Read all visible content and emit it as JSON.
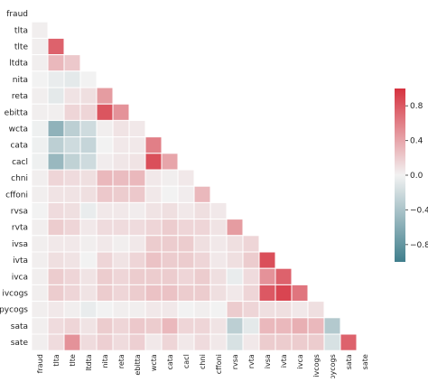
{
  "chart_data": {
    "type": "heatmap",
    "title": "",
    "xlabel": "",
    "ylabel": "",
    "grid": false,
    "legend": "right",
    "row_labels": [
      "fraud",
      "tlta",
      "tlte",
      "ltdta",
      "nita",
      "reta",
      "ebitta",
      "wcta",
      "cata",
      "cacl",
      "chni",
      "cffoni",
      "rvsa",
      "rvta",
      "ivsa",
      "ivta",
      "ivca",
      "ivcogs",
      "pycogs",
      "sata",
      "sate"
    ],
    "col_labels": [
      "fraud",
      "tlta",
      "tlte",
      "ltdta",
      "nita",
      "reta",
      "ebitta",
      "wcta",
      "cata",
      "cacl",
      "chni",
      "cffoni",
      "rvsa",
      "rvta",
      "ivsa",
      "ivta",
      "ivca",
      "ivcogs",
      "pycogs",
      "sata",
      "sate"
    ],
    "mask": "upper-triangle-including-diagonal",
    "values": [
      [],
      [
        0.02
      ],
      [
        0.02,
        0.75
      ],
      [
        0.02,
        0.3,
        0.22
      ],
      [
        0.0,
        -0.05,
        -0.08,
        0.0
      ],
      [
        0.02,
        -0.08,
        0.08,
        0.1,
        0.45
      ],
      [
        0.02,
        0.02,
        0.15,
        0.15,
        0.82,
        0.5
      ],
      [
        -0.02,
        -0.55,
        -0.3,
        -0.2,
        0.02,
        0.08,
        0.05
      ],
      [
        -0.02,
        -0.3,
        -0.2,
        -0.25,
        0.0,
        0.05,
        0.05,
        0.6
      ],
      [
        -0.02,
        -0.5,
        -0.28,
        -0.2,
        0.03,
        0.06,
        0.08,
        0.85,
        0.4
      ],
      [
        0.02,
        0.15,
        0.12,
        0.1,
        0.3,
        0.28,
        0.3,
        0.05,
        0.02,
        0.05
      ],
      [
        0.02,
        0.08,
        0.08,
        0.1,
        0.22,
        0.2,
        0.22,
        0.05,
        0.0,
        0.03,
        0.3
      ],
      [
        0.0,
        0.12,
        0.1,
        -0.05,
        0.05,
        0.05,
        0.03,
        0.08,
        0.1,
        0.05,
        0.1,
        0.05
      ],
      [
        0.02,
        0.2,
        0.15,
        0.05,
        0.12,
        0.12,
        0.12,
        0.15,
        0.2,
        0.15,
        0.15,
        0.08,
        0.45
      ],
      [
        0.02,
        0.05,
        0.05,
        0.02,
        0.05,
        0.02,
        0.05,
        0.2,
        0.2,
        0.2,
        0.1,
        0.05,
        0.1,
        0.15
      ],
      [
        0.02,
        0.1,
        0.08,
        0.0,
        0.15,
        0.08,
        0.15,
        0.25,
        0.2,
        0.2,
        0.15,
        0.05,
        0.1,
        0.2,
        0.85
      ],
      [
        0.02,
        0.2,
        0.15,
        0.08,
        0.2,
        0.15,
        0.2,
        0.2,
        0.2,
        0.15,
        0.2,
        0.1,
        -0.05,
        0.12,
        0.5,
        0.75
      ],
      [
        0.02,
        0.2,
        0.15,
        0.08,
        0.2,
        0.15,
        0.2,
        0.25,
        0.25,
        0.2,
        0.2,
        0.1,
        0.05,
        0.15,
        0.8,
        0.9,
        0.65
      ],
      [
        0.02,
        0.05,
        0.02,
        -0.05,
        0.0,
        0.02,
        0.02,
        0.05,
        0.05,
        0.0,
        0.02,
        0.0,
        0.2,
        0.15,
        0.1,
        0.1,
        0.05,
        0.1
      ],
      [
        0.02,
        0.12,
        0.15,
        0.08,
        0.2,
        0.15,
        0.22,
        0.2,
        0.3,
        0.15,
        0.15,
        0.08,
        -0.3,
        -0.08,
        0.3,
        0.3,
        0.35,
        0.3,
        -0.35
      ],
      [
        0.02,
        0.12,
        0.5,
        0.12,
        0.18,
        0.12,
        0.18,
        0.05,
        0.15,
        0.05,
        0.12,
        0.05,
        -0.15,
        0.05,
        0.2,
        0.2,
        0.2,
        0.2,
        -0.15,
        0.75
      ]
    ],
    "colorbar": {
      "min": -1,
      "max": 1,
      "ticks": [
        0.8,
        0.4,
        0.0,
        -0.4,
        -0.8
      ],
      "tick_labels": [
        "0.8",
        "0.4",
        "0.0",
        "−0.4",
        "−0.8"
      ],
      "negative_color": "#3f7e8c",
      "mid_color": "#f2f2f2",
      "positive_color": "#d6323f"
    }
  }
}
